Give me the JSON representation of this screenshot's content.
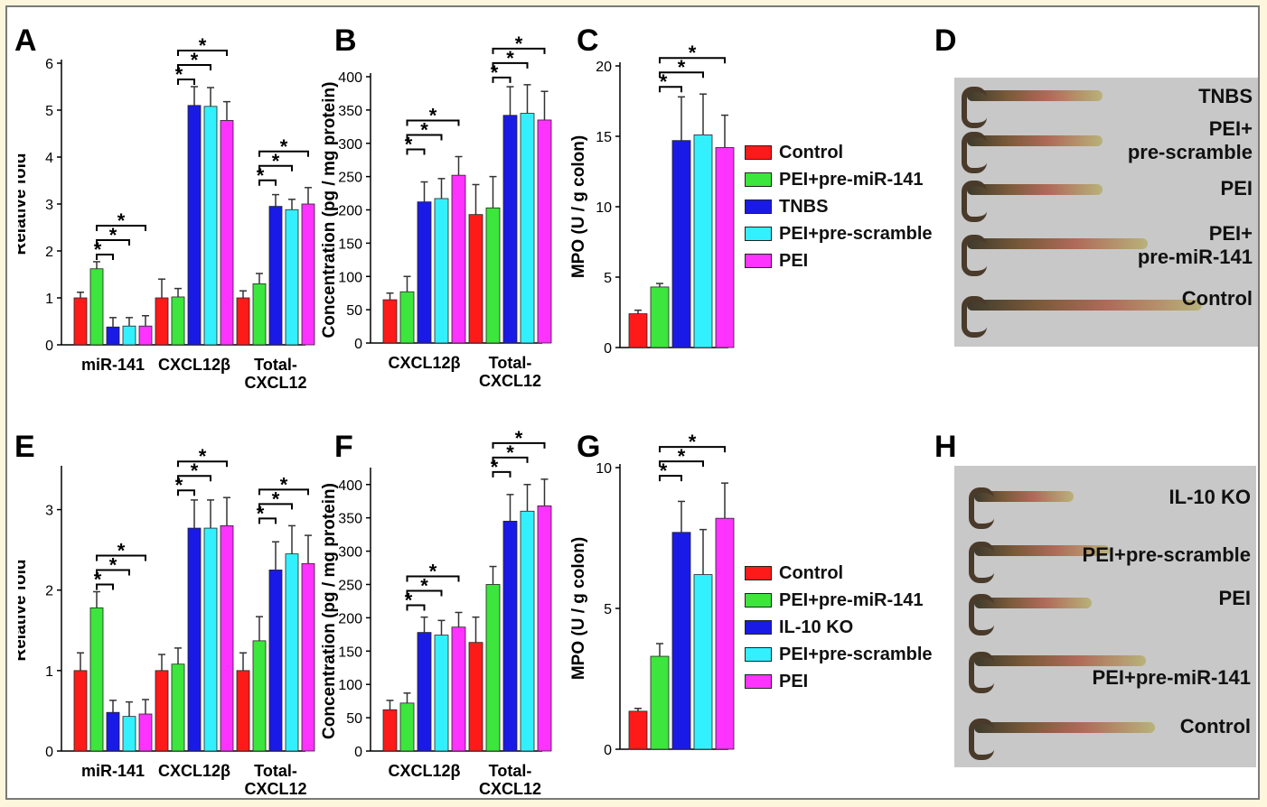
{
  "colors": {
    "series": [
      "#ff1a1a",
      "#3ce63c",
      "#1a1ae6",
      "#33f0ff",
      "#ff33ff"
    ]
  },
  "panels": {
    "A": {
      "letter": "A"
    },
    "B": {
      "letter": "B"
    },
    "C": {
      "letter": "C"
    },
    "D": {
      "letter": "D"
    },
    "E": {
      "letter": "E"
    },
    "F": {
      "letter": "F"
    },
    "G": {
      "letter": "G"
    },
    "H": {
      "letter": "H"
    }
  },
  "legend_top": {
    "items": [
      "Control",
      "PEI+pre-miR-141",
      "TNBS",
      "PEI+pre-scramble",
      "PEI"
    ]
  },
  "legend_bottom": {
    "items": [
      "Control",
      "PEI+pre-miR-141",
      "IL-10 KO",
      "PEI+pre-scramble",
      "PEI"
    ]
  },
  "photo_D": {
    "labels": [
      "TNBS",
      "PEI+\npre-scramble",
      "PEI",
      "PEI+\npre-miR-141",
      "Control"
    ]
  },
  "photo_H": {
    "labels": [
      "IL-10 KO",
      "PEI+pre-scramble",
      "PEI",
      "PEI+pre-miR-141",
      "Control"
    ]
  },
  "chart_data": [
    {
      "id": "A",
      "type": "bar",
      "ylabel": "Relative fold",
      "ylim": [
        0,
        6
      ],
      "yticks": [
        "0",
        "1",
        "2",
        "3",
        "4",
        "5",
        "6"
      ],
      "categories": [
        "miR-141",
        "CXCL12β",
        "Total-\nCXCL12"
      ],
      "series": [
        {
          "name": "Control",
          "values": [
            1.0,
            1.0,
            1.0
          ],
          "errors": [
            0.12,
            0.4,
            0.15
          ]
        },
        {
          "name": "PEI+pre-miR-141",
          "values": [
            1.62,
            1.02,
            1.3
          ],
          "errors": [
            0.15,
            0.18,
            0.22
          ]
        },
        {
          "name": "TNBS",
          "values": [
            0.38,
            5.1,
            2.95
          ],
          "errors": [
            0.2,
            0.4,
            0.25
          ]
        },
        {
          "name": "PEI+pre-scramble",
          "values": [
            0.4,
            5.08,
            2.88
          ],
          "errors": [
            0.18,
            0.4,
            0.22
          ]
        },
        {
          "name": "PEI",
          "values": [
            0.4,
            4.78,
            3.0
          ],
          "errors": [
            0.22,
            0.4,
            0.35
          ]
        }
      ],
      "significance": "*"
    },
    {
      "id": "B",
      "type": "bar",
      "ylabel": "Concentration (pg / mg protein)",
      "ylim": [
        0,
        400
      ],
      "yticks": [
        "0",
        "50",
        "100",
        "150",
        "200",
        "250",
        "300",
        "350",
        "400"
      ],
      "categories": [
        "CXCL12β",
        "Total-\nCXCL12"
      ],
      "series": [
        {
          "name": "Control",
          "values": [
            65,
            193
          ],
          "errors": [
            10,
            45
          ]
        },
        {
          "name": "PEI+pre-miR-141",
          "values": [
            77,
            203
          ],
          "errors": [
            23,
            47
          ]
        },
        {
          "name": "TNBS",
          "values": [
            212,
            342
          ],
          "errors": [
            30,
            43
          ]
        },
        {
          "name": "PEI+pre-scramble",
          "values": [
            217,
            345
          ],
          "errors": [
            30,
            43
          ]
        },
        {
          "name": "PEI",
          "values": [
            252,
            335
          ],
          "errors": [
            28,
            43
          ]
        }
      ],
      "significance": "*"
    },
    {
      "id": "C",
      "type": "bar",
      "ylabel": "MPO (U / g colon)",
      "ylim": [
        0,
        20
      ],
      "yticks": [
        "0",
        "5",
        "10",
        "15",
        "20"
      ],
      "categories": [
        ""
      ],
      "series": [
        {
          "name": "Control",
          "values": [
            2.4
          ],
          "errors": [
            0.25
          ]
        },
        {
          "name": "PEI+pre-miR-141",
          "values": [
            4.3
          ],
          "errors": [
            0.25
          ]
        },
        {
          "name": "TNBS",
          "values": [
            14.7
          ],
          "errors": [
            3.1
          ]
        },
        {
          "name": "PEI+pre-scramble",
          "values": [
            15.1
          ],
          "errors": [
            2.9
          ]
        },
        {
          "name": "PEI",
          "values": [
            14.2
          ],
          "errors": [
            2.3
          ]
        }
      ],
      "significance": "*"
    },
    {
      "id": "E",
      "type": "bar",
      "ylabel": "Relative fold",
      "ylim": [
        0,
        3.5
      ],
      "yticks": [
        "0",
        "1",
        "2",
        "3"
      ],
      "categories": [
        "miR-141",
        "CXCL12β",
        "Total-\nCXCL12"
      ],
      "series": [
        {
          "name": "Control",
          "values": [
            1.0,
            1.0,
            1.0
          ],
          "errors": [
            0.22,
            0.2,
            0.22
          ]
        },
        {
          "name": "PEI+pre-miR-141",
          "values": [
            1.78,
            1.08,
            1.37
          ],
          "errors": [
            0.2,
            0.2,
            0.3
          ]
        },
        {
          "name": "IL-10 KO",
          "values": [
            0.48,
            2.77,
            2.25
          ],
          "errors": [
            0.15,
            0.35,
            0.35
          ]
        },
        {
          "name": "PEI+pre-scramble",
          "values": [
            0.43,
            2.77,
            2.45
          ],
          "errors": [
            0.18,
            0.35,
            0.35
          ]
        },
        {
          "name": "PEI",
          "values": [
            0.46,
            2.8,
            2.33
          ],
          "errors": [
            0.18,
            0.35,
            0.35
          ]
        }
      ],
      "significance": "*"
    },
    {
      "id": "F",
      "type": "bar",
      "ylabel": "Concentration (pg / mg protein)",
      "ylim": [
        0,
        420
      ],
      "yticks": [
        "0",
        "50",
        "100",
        "150",
        "200",
        "250",
        "300",
        "350",
        "400"
      ],
      "categories": [
        "CXCL12β",
        "Total-\nCXCL12"
      ],
      "series": [
        {
          "name": "Control",
          "values": [
            62,
            163
          ],
          "errors": [
            14,
            38
          ]
        },
        {
          "name": "PEI+pre-miR-141",
          "values": [
            72,
            250
          ],
          "errors": [
            15,
            27
          ]
        },
        {
          "name": "IL-10 KO",
          "values": [
            178,
            345
          ],
          "errors": [
            23,
            40
          ]
        },
        {
          "name": "PEI+pre-scramble",
          "values": [
            174,
            360
          ],
          "errors": [
            22,
            40
          ]
        },
        {
          "name": "PEI",
          "values": [
            186,
            368
          ],
          "errors": [
            22,
            40
          ]
        }
      ],
      "significance": "*"
    },
    {
      "id": "G",
      "type": "bar",
      "ylabel": "MPO (U / g colon)",
      "ylim": [
        0,
        10
      ],
      "yticks": [
        "0",
        "5",
        "10"
      ],
      "categories": [
        ""
      ],
      "series": [
        {
          "name": "Control",
          "values": [
            1.35
          ],
          "errors": [
            0.1
          ]
        },
        {
          "name": "PEI+pre-miR-141",
          "values": [
            3.3
          ],
          "errors": [
            0.45
          ]
        },
        {
          "name": "IL-10 KO",
          "values": [
            7.7
          ],
          "errors": [
            1.1
          ]
        },
        {
          "name": "PEI+pre-scramble",
          "values": [
            6.2
          ],
          "errors": [
            1.6
          ]
        },
        {
          "name": "PEI",
          "values": [
            8.2
          ],
          "errors": [
            1.25
          ]
        }
      ],
      "significance": "*"
    }
  ]
}
